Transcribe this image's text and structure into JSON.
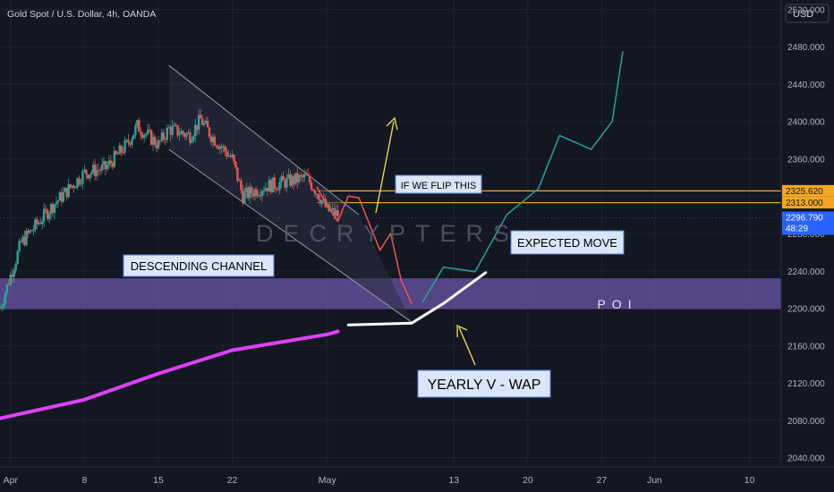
{
  "header": {
    "symbol_title": "Gold Spot / U.S. Dollar, 4h, OANDA",
    "currency_button": "USD"
  },
  "watermark": "DECRYPTERS",
  "colors": {
    "background": "#131722",
    "grid": "#1f2330",
    "bull": "#26a69a",
    "bear": "#ef5350",
    "vwap": "#e040fb",
    "poi_zone": "#6a55a8",
    "level_line": "#f5a623",
    "projection_up": "#26a69a",
    "projection_down": "#ef5350",
    "arrow": "#f5e04a",
    "axis_text": "#b2b5be"
  },
  "annotations": {
    "descending_channel": "DESCENDING CHANNEL",
    "flip": "IF WE FLIP THIS",
    "expected_move": "EXPECTED MOVE",
    "poi": "POI",
    "vwap": "YEARLY V - WAP"
  },
  "price_badges": [
    {
      "label": "2325.620",
      "color": "#f5a623",
      "text_color": "#131722"
    },
    {
      "label": "2313.000",
      "color": "#f5a623",
      "text_color": "#131722"
    },
    {
      "label": "2296.790",
      "sub": "48:29",
      "color": "#2962ff",
      "text_color": "#ffffff"
    }
  ],
  "chart_data": {
    "type": "candlestick",
    "title": "Gold Spot / U.S. Dollar, 4h, OANDA",
    "ylim": [
      2030,
      2530
    ],
    "y_ticks": [
      2040,
      2080,
      2120,
      2160,
      2200,
      2240,
      2280,
      2320,
      2360,
      2400,
      2440,
      2480,
      2520
    ],
    "y_tick_labels": [
      "2040.000",
      "2080.000",
      "2120.000",
      "2160.000",
      "2200.000",
      "2240.000",
      "2280.000",
      "2320.000",
      "2360.000",
      "2400.000",
      "2440.000",
      "2480.000",
      "2520.000"
    ],
    "x_range": [
      "2024-03-31",
      "2024-06-13"
    ],
    "x_ticks": [
      {
        "date": "2024-04-01",
        "label": "Apr"
      },
      {
        "date": "2024-04-08",
        "label": "8"
      },
      {
        "date": "2024-04-15",
        "label": "15"
      },
      {
        "date": "2024-04-22",
        "label": "22"
      },
      {
        "date": "2024-05-01",
        "label": "May"
      },
      {
        "date": "2024-05-13",
        "label": "13"
      },
      {
        "date": "2024-05-20",
        "label": "20"
      },
      {
        "date": "2024-05-27",
        "label": "27"
      },
      {
        "date": "2024-06-01",
        "label": "Jun"
      },
      {
        "date": "2024-06-10",
        "label": "10"
      }
    ],
    "close_path": [
      {
        "date": "2024-03-31",
        "close": 2200
      },
      {
        "date": "2024-04-02",
        "close": 2270
      },
      {
        "date": "2024-04-05",
        "close": 2310
      },
      {
        "date": "2024-04-08",
        "close": 2345
      },
      {
        "date": "2024-04-10",
        "close": 2350
      },
      {
        "date": "2024-04-12",
        "close": 2375
      },
      {
        "date": "2024-04-13",
        "close": 2395
      },
      {
        "date": "2024-04-15",
        "close": 2375
      },
      {
        "date": "2024-04-16",
        "close": 2392
      },
      {
        "date": "2024-04-18",
        "close": 2385
      },
      {
        "date": "2024-04-19",
        "close": 2402
      },
      {
        "date": "2024-04-20",
        "close": 2385
      },
      {
        "date": "2024-04-22",
        "close": 2360
      },
      {
        "date": "2024-04-23",
        "close": 2320
      },
      {
        "date": "2024-04-25",
        "close": 2330
      },
      {
        "date": "2024-04-27",
        "close": 2335
      },
      {
        "date": "2024-04-29",
        "close": 2340
      },
      {
        "date": "2024-04-30",
        "close": 2325
      },
      {
        "date": "2024-05-01",
        "close": 2305
      },
      {
        "date": "2024-05-02",
        "close": 2300
      }
    ],
    "vwap_line": [
      {
        "date": "2024-03-31",
        "value": 2082
      },
      {
        "date": "2024-04-08",
        "value": 2102
      },
      {
        "date": "2024-04-15",
        "value": 2130
      },
      {
        "date": "2024-04-22",
        "value": 2155
      },
      {
        "date": "2024-05-01",
        "value": 2172
      },
      {
        "date": "2024-05-02",
        "value": 2175
      }
    ],
    "channel": {
      "upper": [
        {
          "date": "2024-04-16",
          "value": 2460
        },
        {
          "date": "2024-05-04",
          "value": 2300
        }
      ],
      "lower": [
        {
          "date": "2024-04-16",
          "value": 2370
        },
        {
          "date": "2024-05-09",
          "value": 2185
        }
      ]
    },
    "poi_zone": {
      "from": 2199,
      "to": 2232,
      "label": "POI"
    },
    "levels": [
      2325.62,
      2313.0
    ],
    "last_price": 2296.79,
    "projection_down": [
      {
        "date": "2024-04-30",
        "value": 2330
      },
      {
        "date": "2024-05-01",
        "value": 2310
      },
      {
        "date": "2024-05-02",
        "value": 2293
      },
      {
        "date": "2024-05-03",
        "value": 2320
      },
      {
        "date": "2024-05-04",
        "value": 2318
      },
      {
        "date": "2024-05-06",
        "value": 2262
      },
      {
        "date": "2024-05-07",
        "value": 2280
      },
      {
        "date": "2024-05-08",
        "value": 2230
      },
      {
        "date": "2024-05-09",
        "value": 2205
      }
    ],
    "projection_up": [
      {
        "date": "2024-05-10",
        "value": 2206
      },
      {
        "date": "2024-05-12",
        "value": 2244
      },
      {
        "date": "2024-05-15",
        "value": 2239
      },
      {
        "date": "2024-05-18",
        "value": 2300
      },
      {
        "date": "2024-05-21",
        "value": 2328
      },
      {
        "date": "2024-05-23",
        "value": 2385
      },
      {
        "date": "2024-05-26",
        "value": 2370
      },
      {
        "date": "2024-05-28",
        "value": 2400
      },
      {
        "date": "2024-05-29",
        "value": 2475
      }
    ],
    "vwap_curve": [
      {
        "date": "2024-05-03",
        "value": 2182
      },
      {
        "date": "2024-05-09",
        "value": 2184
      },
      {
        "date": "2024-05-12",
        "value": 2205
      },
      {
        "date": "2024-05-16",
        "value": 2238
      }
    ]
  }
}
